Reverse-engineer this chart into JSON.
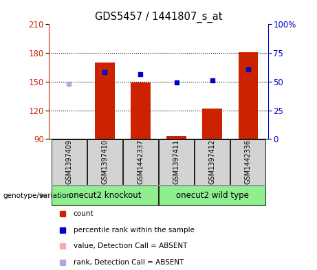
{
  "title": "GDS5457 / 1441807_s_at",
  "samples": [
    "GSM1397409",
    "GSM1397410",
    "GSM1442337",
    "GSM1397411",
    "GSM1397412",
    "GSM1442336"
  ],
  "group_labels": [
    "onecut2 knockout",
    "onecut2 wild type"
  ],
  "group_color": "#90EE90",
  "bar_values": [
    90,
    170,
    149,
    93,
    122,
    181
  ],
  "bar_bottom": 90,
  "bar_color_present": "#cc2200",
  "bar_color_absent": "#ffaaaa",
  "is_absent": [
    true,
    false,
    false,
    false,
    false,
    false
  ],
  "rank_values": [
    148,
    160,
    158,
    149,
    151,
    163
  ],
  "rank_is_absent": [
    true,
    false,
    false,
    false,
    false,
    false
  ],
  "rank_present_color": "#0000cc",
  "rank_absent_color": "#aaaadd",
  "ylim_left": [
    90,
    210
  ],
  "ylim_right": [
    0,
    100
  ],
  "yticks_left": [
    90,
    120,
    150,
    180,
    210
  ],
  "yticks_right": [
    0,
    25,
    50,
    75,
    100
  ],
  "ytick_labels_right": [
    "0",
    "25",
    "50",
    "75",
    "100%"
  ],
  "hgrid_lines": [
    120,
    150,
    180
  ],
  "bar_width": 0.55,
  "sample_box_color": "#d3d3d3",
  "legend_items": [
    {
      "color": "#cc2200",
      "label": "count"
    },
    {
      "color": "#0000cc",
      "label": "percentile rank within the sample"
    },
    {
      "color": "#ffaaaa",
      "label": "value, Detection Call = ABSENT"
    },
    {
      "color": "#aaaadd",
      "label": "rank, Detection Call = ABSENT"
    }
  ]
}
